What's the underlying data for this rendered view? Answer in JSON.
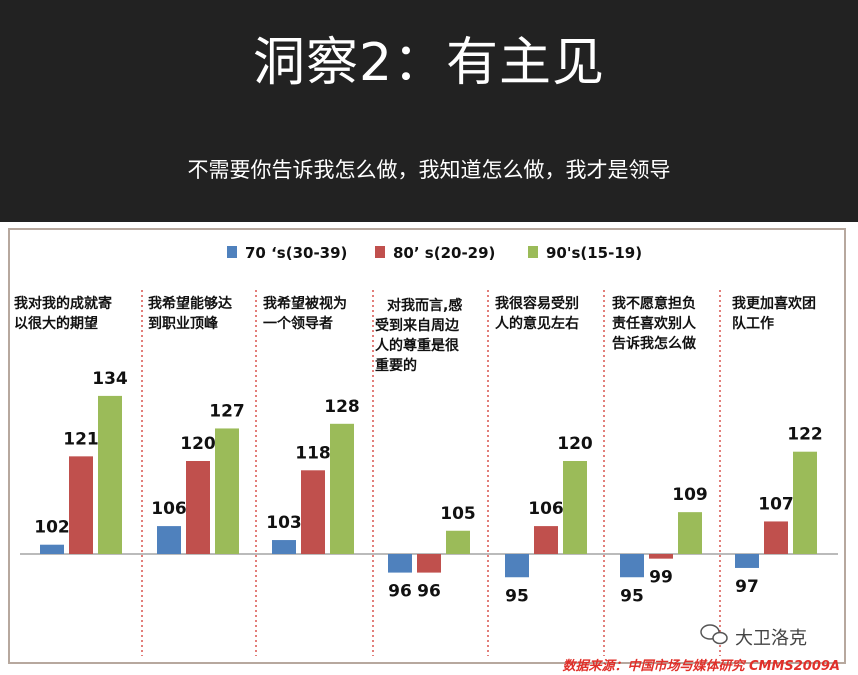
{
  "header": {
    "title": "洞察2：有主见",
    "subtitle": "不需要你告诉我怎么做，我知道怎么做，我才是领导"
  },
  "source_note": "数据来源：中国市场与媒体研究 CMMS2009A",
  "watermark": "大卫洛克",
  "colors": {
    "s70": "#4f81bd",
    "s80": "#c0504d",
    "s90": "#9bbb59",
    "divider": "#d9534f"
  },
  "chart_data": {
    "type": "bar",
    "baseline": 100,
    "categories": [
      [
        "我对我的成就寄",
        "以很大的期望"
      ],
      [
        "我希望能够达",
        "到职业顶峰"
      ],
      [
        "我希望被视为",
        "一个领导者"
      ],
      [
        "对我而言,感",
        "受到来自周边",
        "人的尊重是很",
        "重要的"
      ],
      [
        "我很容易受别",
        "人的意见左右"
      ],
      [
        "我不愿意担负",
        "责任喜欢别人",
        "告诉我怎么做"
      ],
      [
        "我更加喜欢团",
        "队工作"
      ]
    ],
    "series": [
      {
        "name": "70 ‘s(30-39)",
        "values": [
          102,
          106,
          103,
          96,
          95,
          95,
          97
        ]
      },
      {
        "name": "80’ s(20-29)",
        "values": [
          121,
          120,
          118,
          96,
          106,
          99,
          107
        ]
      },
      {
        "name": "90's(15-19)",
        "values": [
          134,
          127,
          128,
          105,
          120,
          109,
          122
        ]
      }
    ],
    "legend_position": "top"
  }
}
